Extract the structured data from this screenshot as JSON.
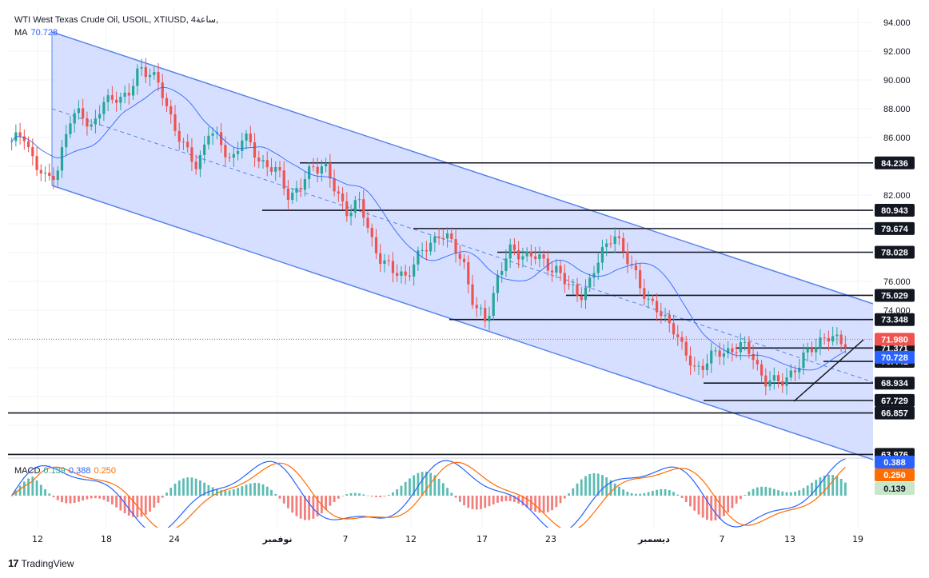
{
  "header": {
    "title": "WTI West Texas Crude Oil, USOIL, XTIUSD, 4ساعة,",
    "ma_label": "MA",
    "ma_value": "70.728"
  },
  "macd_header": {
    "label": "MACD",
    "hist": "0.139",
    "macd": "0.388",
    "signal": "0.250"
  },
  "brand": {
    "name": "TradingView",
    "logo": "17"
  },
  "colors": {
    "up": "#26a69a",
    "down": "#ef5350",
    "channel_fill": "#d1dcff",
    "channel_line": "#5b84e8",
    "ma": "#2962ff",
    "macd": "#2962ff",
    "signal": "#ff6d00",
    "price_tag": "#ef5350",
    "ma_tag": "#2962ff"
  },
  "chart_data": {
    "type": "candlestick",
    "instrument": "WTI West Texas Crude Oil, USOIL, XTIUSD",
    "interval": "4ساعة",
    "x_ticks": [
      "12",
      "18",
      "24",
      "نوفمبر",
      "7",
      "12",
      "17",
      "23",
      "ديسمبر",
      "7",
      "13",
      "19"
    ],
    "y_ticks": [
      "94.000",
      "92.000",
      "90.000",
      "88.000",
      "86.000",
      "82.000",
      "76.000",
      "74.000"
    ],
    "ylim": [
      62.5,
      95
    ],
    "levels": [
      84.236,
      80.943,
      79.674,
      78.028,
      75.029,
      73.348,
      71.371,
      70.441,
      68.934,
      67.729,
      66.857,
      63.976
    ],
    "current_price": 71.98,
    "ma_value": 70.728,
    "macd_axis_tags": {
      "macd": "0.388",
      "signal": "0.250",
      "hist": "0.139"
    },
    "close_path": [
      85.5,
      86.5,
      84,
      83,
      84,
      87,
      88,
      86.5,
      88.5,
      89,
      88.5,
      91,
      90.5,
      89,
      87,
      85,
      84,
      86.5,
      85.5,
      84.5,
      86,
      85,
      84,
      83.5,
      82,
      82.5,
      84,
      84.2,
      82,
      81,
      81.5,
      79,
      77.5,
      76.5,
      76.5,
      77.5,
      78.5,
      79.5,
      78.5,
      77.5,
      74,
      73.2,
      76.5,
      78,
      78,
      77.8,
      77.2,
      77,
      75.6,
      75.1,
      76,
      78,
      79.6,
      77.5,
      76.5,
      74.5,
      73.7,
      73.2,
      71,
      70,
      70.4,
      71,
      71.3,
      71.4,
      71,
      69,
      68.9,
      69.5,
      70,
      71.5,
      72,
      71.9,
      71.98
    ]
  }
}
